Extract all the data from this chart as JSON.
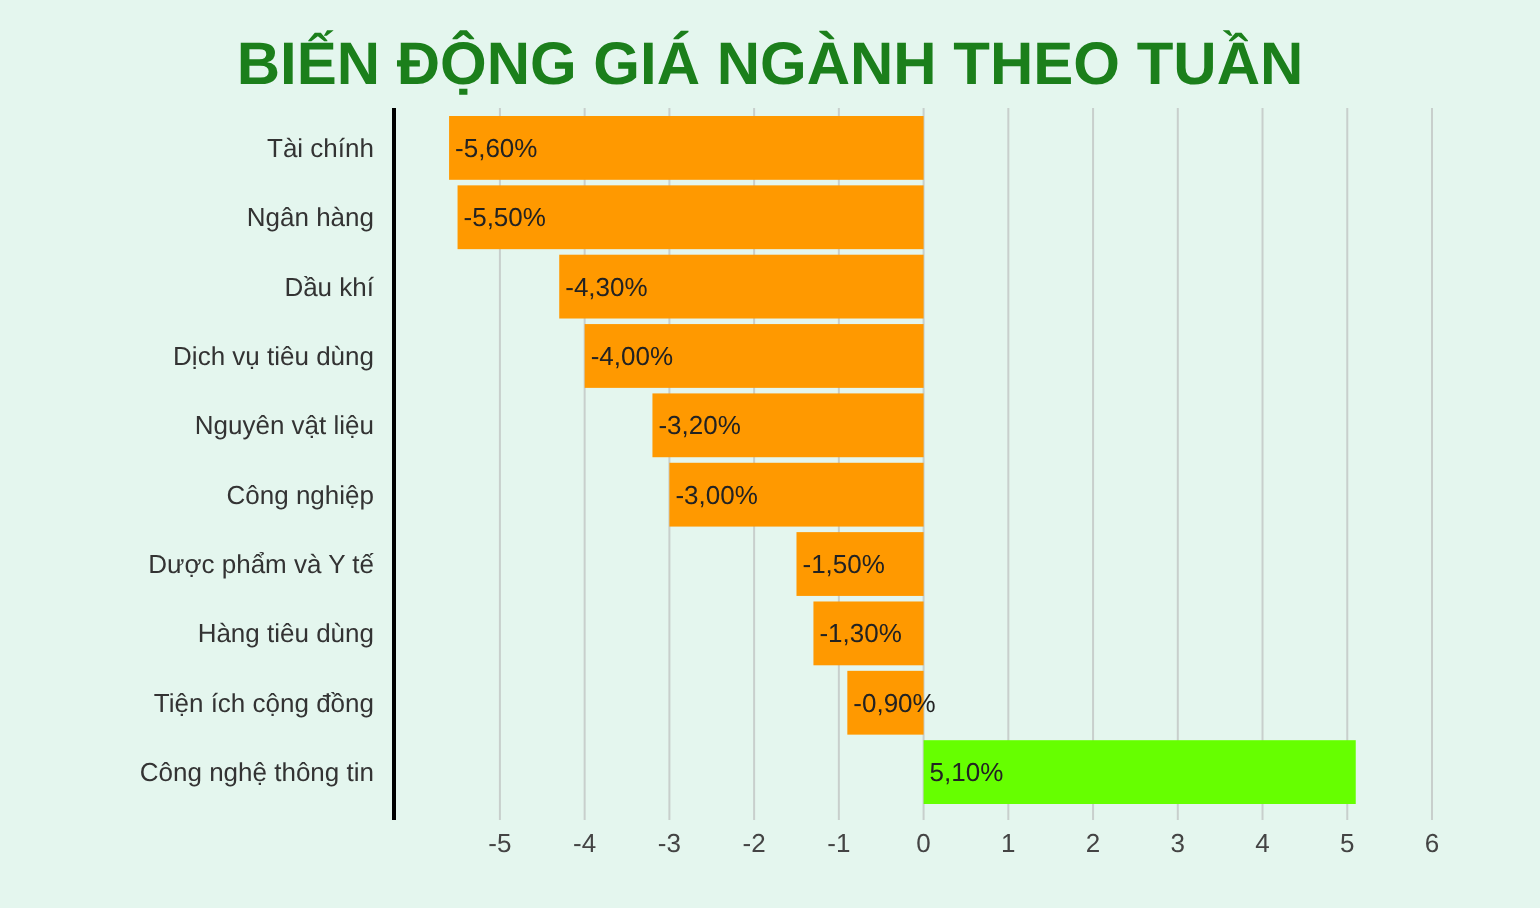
{
  "chart_data": {
    "type": "bar",
    "orientation": "horizontal",
    "title": "BIẾN ĐỘNG GIÁ NGÀNH THEO TUẦN",
    "categories": [
      "Tài chính",
      "Ngân hàng",
      "Dầu khí",
      "Dịch vụ tiêu dùng",
      "Nguyên vật liệu",
      "Công nghiệp",
      "Dược phẩm và Y tế",
      "Hàng tiêu dùng",
      "Tiện ích cộng đồng",
      "Công nghệ thông tin"
    ],
    "values": [
      -5.6,
      -5.5,
      -4.3,
      -4.0,
      -3.2,
      -3.0,
      -1.5,
      -1.3,
      -0.9,
      5.1
    ],
    "value_labels": [
      "-5,60%",
      "-5,50%",
      "-4,30%",
      "-4,00%",
      "-3,20%",
      "-3,00%",
      "-1,50%",
      "-1,30%",
      "-0,90%",
      "5,10%"
    ],
    "colors": [
      "#ff9900",
      "#ff9900",
      "#ff9900",
      "#ff9900",
      "#ff9900",
      "#ff9900",
      "#ff9900",
      "#ff9900",
      "#ff9900",
      "#66ff00"
    ],
    "xlim": [
      -6.25,
      6
    ],
    "xticks": [
      -5,
      -4,
      -3,
      -2,
      -1,
      0,
      1,
      2,
      3,
      4,
      5,
      6
    ],
    "grid": "x"
  }
}
